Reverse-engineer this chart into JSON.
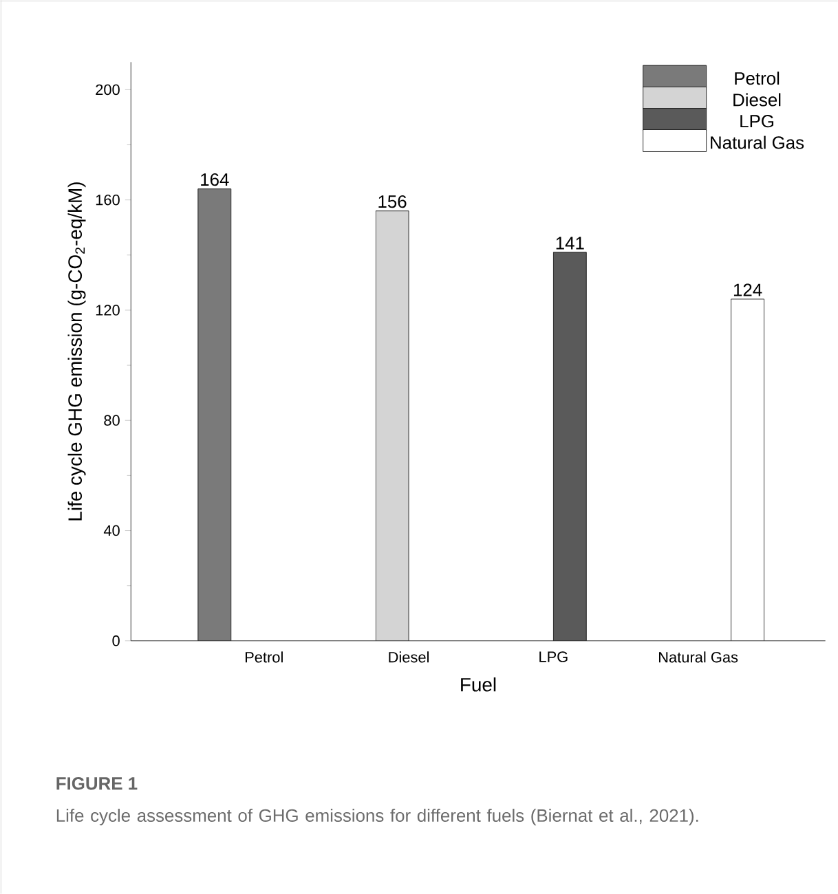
{
  "chart_data": {
    "type": "bar",
    "title": "FIGURE 1",
    "subtitle": "Life cycle assessment of GHG emissions for different fuels (Biernat et al., 2021).",
    "xlabel": "Fuel",
    "ylabel": "Life cycle GHG emission (g-CO$_{2}$-eq/kM)",
    "categories": [
      "Petrol",
      "Diesel",
      "LPG",
      "Natural Gas"
    ],
    "series": [
      {
        "name": "Petrol",
        "color": "#7a7a7a",
        "values": [
          164,
          null,
          null,
          null
        ]
      },
      {
        "name": "Diesel",
        "color": "#d4d4d4",
        "values": [
          null,
          156,
          null,
          null
        ]
      },
      {
        "name": "LPG",
        "color": "#5a5a5a",
        "values": [
          null,
          null,
          141,
          null
        ]
      },
      {
        "name": "Natural Gas",
        "color": "#ffffff",
        "values": [
          null,
          null,
          null,
          124
        ]
      }
    ],
    "ylim": [
      0,
      210
    ],
    "yticks": [
      0,
      40,
      80,
      120,
      160,
      200
    ],
    "data_labels": true,
    "legend": "top right",
    "grid": false
  }
}
